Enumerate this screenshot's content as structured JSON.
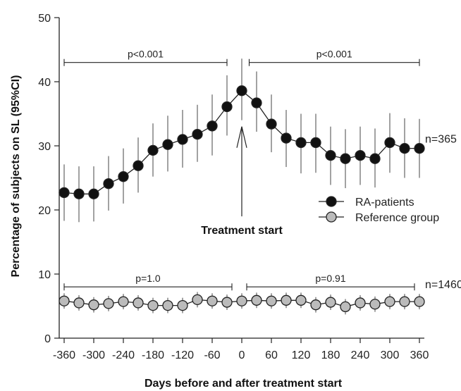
{
  "chart_data": {
    "type": "line",
    "xlabel": "Days before and after treatment start",
    "ylabel": "Percentage of subjects on SL (95%CI)",
    "xlim": [
      -370,
      370
    ],
    "ylim": [
      0,
      50
    ],
    "x_ticks": [
      -360,
      -300,
      -240,
      -180,
      -120,
      -60,
      0,
      60,
      120,
      180,
      240,
      300,
      360
    ],
    "x_tick_labels": [
      "-360",
      "-300",
      "-240",
      "-180",
      "-120",
      "-60",
      "0",
      "60",
      "120",
      "180",
      "240",
      "300",
      "360"
    ],
    "y_ticks": [
      0,
      10,
      20,
      30,
      40,
      50
    ],
    "y_tick_labels": [
      "0",
      "10",
      "20",
      "30",
      "40",
      "50"
    ],
    "x": [
      -360,
      -330,
      -300,
      -270,
      -240,
      -210,
      -180,
      -150,
      -120,
      -90,
      -60,
      -30,
      0,
      30,
      60,
      90,
      120,
      150,
      180,
      210,
      240,
      270,
      300,
      330,
      360
    ],
    "series": [
      {
        "name": "RA-patients",
        "marker_color": "#111111",
        "n_label": "n=365",
        "values": [
          22.7,
          22.5,
          22.5,
          24.1,
          25.2,
          26.9,
          29.3,
          30.2,
          31.0,
          31.8,
          33.1,
          36.1,
          38.6,
          36.7,
          33.4,
          31.2,
          30.5,
          30.5,
          28.5,
          28.0,
          28.5,
          28.0,
          30.5,
          29.6,
          29.6
        ],
        "ci_low": [
          18.3,
          18.1,
          18.2,
          19.9,
          21.0,
          22.7,
          25.2,
          26.0,
          26.6,
          27.5,
          28.5,
          31.6,
          34.0,
          32.2,
          29.0,
          26.7,
          25.7,
          25.8,
          23.9,
          23.4,
          23.9,
          23.5,
          25.8,
          25.0,
          25.0
        ],
        "ci_high": [
          27.1,
          26.8,
          26.8,
          28.4,
          29.6,
          31.3,
          33.5,
          34.7,
          35.6,
          36.4,
          38.0,
          41.0,
          43.6,
          41.6,
          38.0,
          35.6,
          35.0,
          35.0,
          33.0,
          32.6,
          33.0,
          32.7,
          35.1,
          34.3,
          34.2
        ]
      },
      {
        "name": "Reference group",
        "marker_color": "#bbbbbb",
        "n_label": "n=1460",
        "values": [
          5.8,
          5.5,
          5.2,
          5.4,
          5.7,
          5.5,
          5.1,
          5.1,
          5.1,
          6.0,
          5.8,
          5.6,
          5.8,
          5.9,
          5.8,
          5.9,
          5.9,
          5.2,
          5.6,
          4.9,
          5.5,
          5.3,
          5.7,
          5.7,
          5.7
        ],
        "ci_low": [
          4.6,
          4.3,
          4.0,
          4.2,
          4.5,
          4.3,
          3.9,
          3.9,
          3.9,
          4.8,
          4.6,
          4.4,
          4.6,
          4.7,
          4.6,
          4.7,
          4.7,
          4.0,
          4.4,
          3.7,
          4.3,
          4.1,
          4.5,
          4.5,
          4.5
        ],
        "ci_high": [
          7.0,
          6.7,
          6.4,
          6.6,
          6.9,
          6.7,
          6.3,
          6.3,
          6.3,
          7.2,
          7.0,
          6.8,
          7.0,
          7.1,
          7.0,
          7.1,
          7.1,
          6.4,
          6.8,
          6.1,
          6.7,
          6.5,
          6.9,
          6.9,
          6.9
        ]
      }
    ],
    "brackets": [
      {
        "label": "p<0.001",
        "x_from": -360,
        "x_to": -30,
        "y": 43
      },
      {
        "label": "p<0.001",
        "x_from": 15,
        "x_to": 360,
        "y": 43
      },
      {
        "label": "p=1.0",
        "x_from": -360,
        "x_to": -20,
        "y": 8
      },
      {
        "label": "p=0.91",
        "x_from": 10,
        "x_to": 350,
        "y": 8
      }
    ],
    "annotation": {
      "label": "Treatment start",
      "x": 0,
      "y_arrow_tip": 33,
      "y_arrow_base": 19
    },
    "legend": {
      "position": "right-middle"
    },
    "grid": false
  }
}
